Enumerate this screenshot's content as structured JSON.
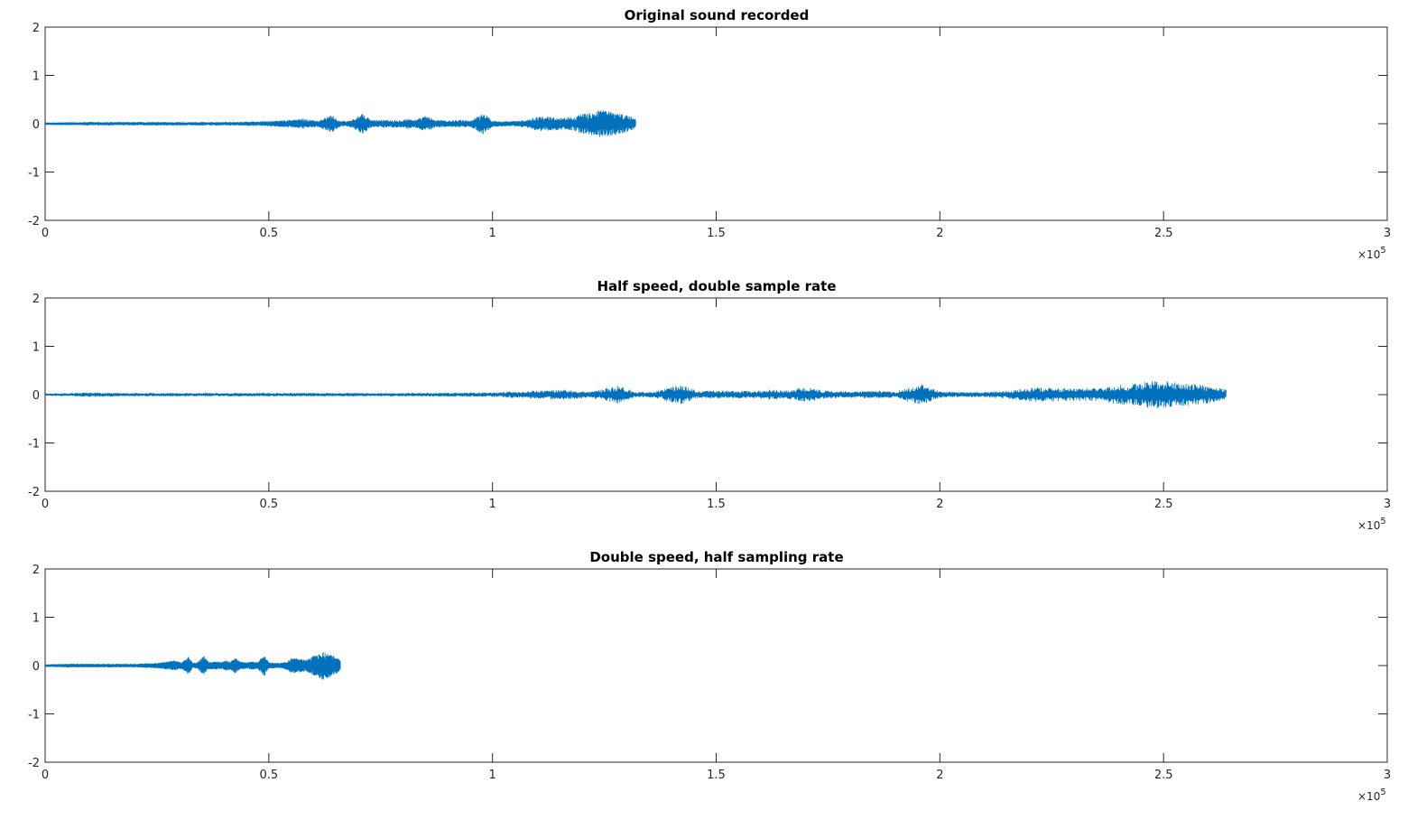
{
  "chart_data": [
    {
      "type": "line",
      "title": "Original sound recorded",
      "xlabel": "",
      "ylabel": "",
      "xlim": [
        0,
        300000
      ],
      "ylim": [
        -2,
        2
      ],
      "x_ticks": [
        0,
        50000,
        100000,
        150000,
        200000,
        250000,
        300000
      ],
      "x_tick_labels": [
        "0",
        "0.5",
        "1",
        "1.5",
        "2",
        "2.5",
        "3"
      ],
      "y_ticks": [
        2,
        1,
        0,
        -1,
        -2
      ],
      "y_tick_labels": [
        "2",
        "1",
        "0",
        "-1",
        "-2"
      ],
      "x_exponent_label": "×10",
      "x_exponent_power": "5",
      "color": "#0072bd",
      "grid": false,
      "series": [
        {
          "num_samples": 132000,
          "envelope": [
            [
              0,
              0.02
            ],
            [
              10000,
              0.03
            ],
            [
              20000,
              0.03
            ],
            [
              30000,
              0.03
            ],
            [
              40000,
              0.03
            ],
            [
              50000,
              0.05
            ],
            [
              52000,
              0.06
            ],
            [
              55000,
              0.08
            ],
            [
              58000,
              0.1
            ],
            [
              61000,
              0.06
            ],
            [
              64000,
              0.18
            ],
            [
              66000,
              0.05
            ],
            [
              68000,
              0.06
            ],
            [
              71000,
              0.2
            ],
            [
              73000,
              0.07
            ],
            [
              76000,
              0.08
            ],
            [
              79000,
              0.07
            ],
            [
              81000,
              0.1
            ],
            [
              83000,
              0.08
            ],
            [
              85000,
              0.16
            ],
            [
              87000,
              0.08
            ],
            [
              90000,
              0.06
            ],
            [
              93000,
              0.08
            ],
            [
              95000,
              0.06
            ],
            [
              98000,
              0.22
            ],
            [
              100000,
              0.06
            ],
            [
              103000,
              0.05
            ],
            [
              105000,
              0.05
            ],
            [
              108000,
              0.08
            ],
            [
              110000,
              0.15
            ],
            [
              113000,
              0.14
            ],
            [
              116000,
              0.12
            ],
            [
              118000,
              0.14
            ],
            [
              120000,
              0.2
            ],
            [
              122000,
              0.22
            ],
            [
              124000,
              0.3
            ],
            [
              126000,
              0.26
            ],
            [
              128000,
              0.22
            ],
            [
              130000,
              0.18
            ],
            [
              132000,
              0.1
            ]
          ]
        }
      ]
    },
    {
      "type": "line",
      "title": "Half speed, double sample rate",
      "xlabel": "",
      "ylabel": "",
      "xlim": [
        0,
        300000
      ],
      "ylim": [
        -2,
        2
      ],
      "x_ticks": [
        0,
        50000,
        100000,
        150000,
        200000,
        250000,
        300000
      ],
      "x_tick_labels": [
        "0",
        "0.5",
        "1",
        "1.5",
        "2",
        "2.5",
        "3"
      ],
      "y_ticks": [
        2,
        1,
        0,
        -1,
        -2
      ],
      "y_tick_labels": [
        "2",
        "1",
        "0",
        "-1",
        "-2"
      ],
      "x_exponent_label": "×10",
      "x_exponent_power": "5",
      "color": "#0072bd",
      "grid": false,
      "series": [
        {
          "num_samples": 264000,
          "envelope": [
            [
              0,
              0.02
            ],
            [
              10000,
              0.04
            ],
            [
              20000,
              0.03
            ],
            [
              40000,
              0.03
            ],
            [
              60000,
              0.03
            ],
            [
              80000,
              0.03
            ],
            [
              100000,
              0.04
            ],
            [
              104000,
              0.06
            ],
            [
              110000,
              0.08
            ],
            [
              116000,
              0.1
            ],
            [
              122000,
              0.06
            ],
            [
              128000,
              0.18
            ],
            [
              132000,
              0.05
            ],
            [
              136000,
              0.06
            ],
            [
              142000,
              0.2
            ],
            [
              146000,
              0.07
            ],
            [
              152000,
              0.08
            ],
            [
              158000,
              0.07
            ],
            [
              162000,
              0.1
            ],
            [
              166000,
              0.08
            ],
            [
              170000,
              0.16
            ],
            [
              174000,
              0.08
            ],
            [
              180000,
              0.06
            ],
            [
              186000,
              0.08
            ],
            [
              190000,
              0.06
            ],
            [
              196000,
              0.22
            ],
            [
              200000,
              0.06
            ],
            [
              206000,
              0.05
            ],
            [
              210000,
              0.05
            ],
            [
              216000,
              0.08
            ],
            [
              220000,
              0.15
            ],
            [
              226000,
              0.14
            ],
            [
              232000,
              0.12
            ],
            [
              236000,
              0.14
            ],
            [
              240000,
              0.2
            ],
            [
              244000,
              0.22
            ],
            [
              248000,
              0.3
            ],
            [
              252000,
              0.26
            ],
            [
              256000,
              0.22
            ],
            [
              260000,
              0.18
            ],
            [
              264000,
              0.1
            ]
          ]
        }
      ]
    },
    {
      "type": "line",
      "title": "Double speed, half sampling rate",
      "xlabel": "",
      "ylabel": "",
      "xlim": [
        0,
        300000
      ],
      "ylim": [
        -2,
        2
      ],
      "x_ticks": [
        0,
        50000,
        100000,
        150000,
        200000,
        250000,
        300000
      ],
      "x_tick_labels": [
        "0",
        "0.5",
        "1",
        "1.5",
        "2",
        "2.5",
        "3"
      ],
      "y_ticks": [
        2,
        1,
        0,
        -1,
        -2
      ],
      "y_tick_labels": [
        "2",
        "1",
        "0",
        "-1",
        "-2"
      ],
      "x_exponent_label": "×10",
      "x_exponent_power": "5",
      "color": "#0072bd",
      "grid": false,
      "series": [
        {
          "num_samples": 66000,
          "envelope": [
            [
              0,
              0.02
            ],
            [
              5000,
              0.03
            ],
            [
              10000,
              0.03
            ],
            [
              15000,
              0.03
            ],
            [
              20000,
              0.03
            ],
            [
              25000,
              0.05
            ],
            [
              27500,
              0.08
            ],
            [
              29000,
              0.1
            ],
            [
              30500,
              0.06
            ],
            [
              32000,
              0.18
            ],
            [
              33000,
              0.05
            ],
            [
              34000,
              0.06
            ],
            [
              35500,
              0.2
            ],
            [
              36500,
              0.07
            ],
            [
              38000,
              0.08
            ],
            [
              39500,
              0.07
            ],
            [
              40500,
              0.1
            ],
            [
              41500,
              0.08
            ],
            [
              42500,
              0.16
            ],
            [
              43500,
              0.08
            ],
            [
              45000,
              0.06
            ],
            [
              46500,
              0.08
            ],
            [
              47500,
              0.06
            ],
            [
              49000,
              0.22
            ],
            [
              50000,
              0.06
            ],
            [
              51500,
              0.05
            ],
            [
              52500,
              0.05
            ],
            [
              54000,
              0.08
            ],
            [
              55000,
              0.15
            ],
            [
              56500,
              0.14
            ],
            [
              58000,
              0.12
            ],
            [
              59000,
              0.14
            ],
            [
              60000,
              0.2
            ],
            [
              61000,
              0.22
            ],
            [
              62000,
              0.3
            ],
            [
              63000,
              0.26
            ],
            [
              64000,
              0.22
            ],
            [
              65000,
              0.18
            ],
            [
              66000,
              0.1
            ]
          ]
        }
      ]
    }
  ]
}
